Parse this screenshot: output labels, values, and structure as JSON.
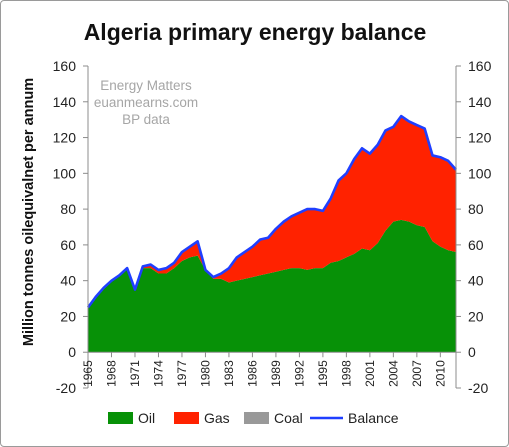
{
  "chart_data": {
    "type": "area",
    "title": "Algeria primary energy balance",
    "xlabel": "",
    "ylabel": "Million tonnes oilequivalnet per annum",
    "ylim": [
      -20,
      160
    ],
    "yticks": [
      -20,
      0,
      20,
      40,
      60,
      80,
      100,
      120,
      140,
      160
    ],
    "xtick_labels": [
      "1965",
      "1968",
      "1971",
      "1974",
      "1977",
      "1980",
      "1983",
      "1986",
      "1989",
      "1992",
      "1995",
      "1998",
      "2001",
      "2004",
      "2007",
      "2010"
    ],
    "grid": false,
    "secondary_y_axis": true,
    "legend_position": "bottom",
    "annotations": [
      "Energy Matters",
      "euanmearns.com",
      "BP data"
    ],
    "x": [
      1965,
      1966,
      1967,
      1968,
      1969,
      1970,
      1971,
      1972,
      1973,
      1974,
      1975,
      1976,
      1977,
      1978,
      1979,
      1980,
      1981,
      1982,
      1983,
      1984,
      1985,
      1986,
      1987,
      1988,
      1989,
      1990,
      1991,
      1992,
      1993,
      1994,
      1995,
      1996,
      1997,
      1998,
      1999,
      2000,
      2001,
      2002,
      2003,
      2004,
      2005,
      2006,
      2007,
      2008,
      2009,
      2010,
      2011,
      2012
    ],
    "series": [
      {
        "name": "Oil",
        "color": "#079107",
        "values": [
          25,
          31,
          36,
          40,
          43,
          46,
          35,
          47,
          47,
          44,
          44,
          47,
          51,
          53,
          54,
          46,
          41,
          41,
          39,
          40,
          41,
          42,
          43,
          44,
          45,
          46,
          47,
          47,
          46,
          47,
          47,
          50,
          51,
          53,
          55,
          58,
          57,
          61,
          68,
          73,
          74,
          73,
          71,
          70,
          62,
          59,
          57,
          56
        ]
      },
      {
        "name": "Gas",
        "color": "#ff2200",
        "values": [
          0,
          0,
          0,
          0,
          0,
          1,
          0,
          1,
          2,
          2,
          3,
          3,
          5,
          6,
          8,
          0,
          1,
          3,
          8,
          13,
          15,
          17,
          20,
          20,
          24,
          27,
          29,
          31,
          34,
          33,
          32,
          36,
          45,
          47,
          53,
          56,
          54,
          55,
          56,
          53,
          58,
          56,
          56,
          55,
          48,
          50,
          50,
          46
        ]
      },
      {
        "name": "Coal",
        "color": "#999999",
        "values": [
          0,
          0,
          0,
          0,
          0,
          0,
          0,
          0,
          0,
          0,
          0,
          0,
          0,
          0,
          0,
          0,
          0,
          0,
          0,
          0,
          0,
          0,
          0,
          0,
          0,
          0,
          0,
          0,
          0,
          0,
          0,
          0,
          0,
          0,
          0,
          0,
          0,
          0,
          0,
          0,
          0,
          0,
          0,
          0,
          0,
          0,
          0,
          0
        ]
      },
      {
        "name": "Balance",
        "color": "#1f3fff",
        "values": [
          25,
          31,
          36,
          40,
          43,
          47,
          35,
          48,
          49,
          46,
          47,
          50,
          56,
          59,
          62,
          46,
          42,
          44,
          47,
          53,
          56,
          59,
          63,
          64,
          69,
          73,
          76,
          78,
          80,
          80,
          79,
          86,
          96,
          100,
          108,
          114,
          111,
          116,
          124,
          126,
          132,
          129,
          127,
          125,
          110,
          109,
          107,
          102
        ]
      }
    ]
  }
}
